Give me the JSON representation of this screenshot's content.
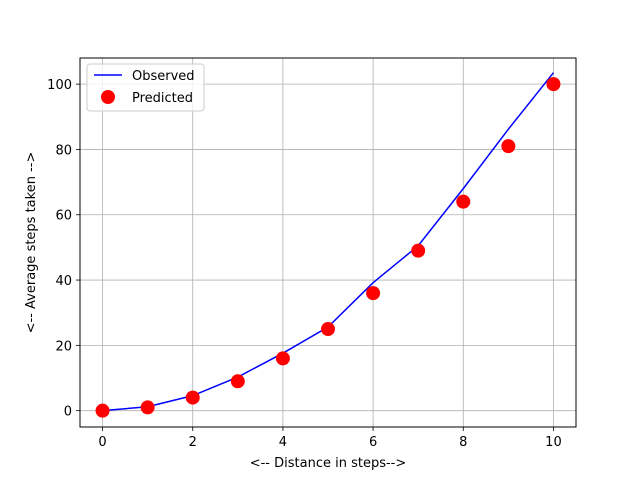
{
  "chart_data": {
    "type": "line+scatter",
    "xlabel": "<-- Distance in steps-->",
    "ylabel": "<-- Average steps taken -->",
    "xlim": [
      -0.5,
      10.5
    ],
    "ylim": [
      -5,
      108
    ],
    "xticks": [
      0,
      2,
      4,
      6,
      8,
      10
    ],
    "yticks": [
      0,
      20,
      40,
      60,
      80,
      100
    ],
    "grid": true,
    "legend_position": "upper-left",
    "series": [
      {
        "name": "Observed",
        "kind": "line",
        "color": "#0000ff",
        "x": [
          0,
          1,
          2,
          3,
          4,
          5,
          6,
          7,
          8,
          9,
          10
        ],
        "y": [
          0,
          1.2,
          4.6,
          10.3,
          17.6,
          25.6,
          39.2,
          50.5,
          68,
          86.2,
          103.5
        ]
      },
      {
        "name": "Predicted",
        "kind": "scatter",
        "color": "#ff0000",
        "x": [
          0,
          1,
          2,
          3,
          4,
          5,
          6,
          7,
          8,
          9,
          10
        ],
        "y": [
          0,
          1,
          4,
          9,
          16,
          25,
          36,
          49,
          64,
          81,
          100
        ]
      }
    ]
  }
}
